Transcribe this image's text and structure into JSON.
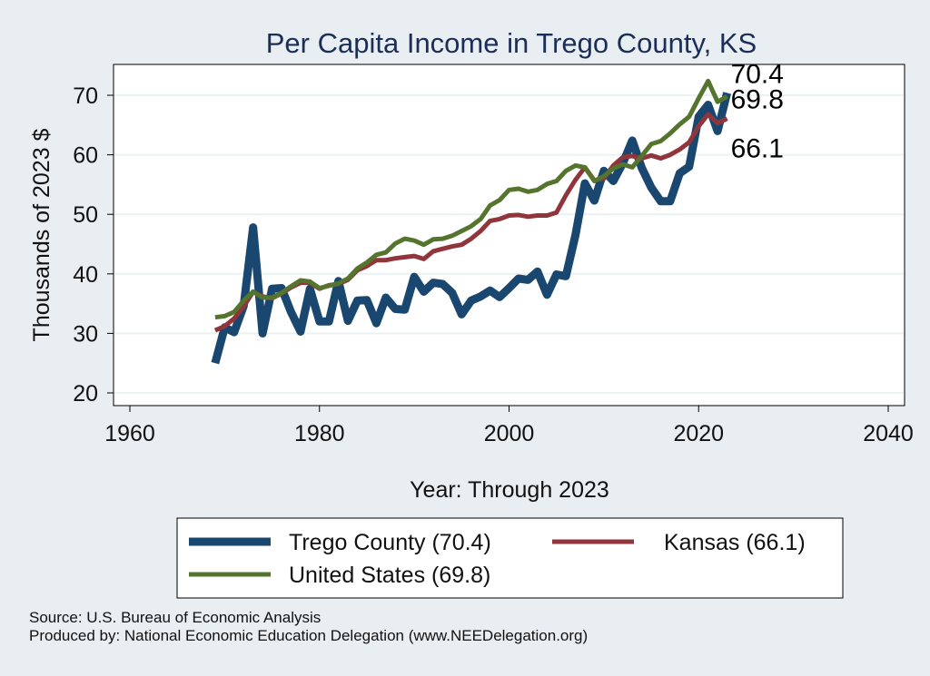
{
  "chart_data": {
    "type": "line",
    "title": "Per Capita Income in Trego County, KS",
    "xlabel": "Year: Through 2023",
    "ylabel": "Thousands of 2023 $",
    "xlim": [
      1960,
      2040
    ],
    "ylim": [
      18,
      75
    ],
    "x_ticks": [
      1960,
      1980,
      2000,
      2020,
      2040
    ],
    "y_ticks": [
      20,
      30,
      40,
      50,
      60,
      70
    ],
    "grid": true,
    "legend_position": "bottom",
    "x": [
      1969,
      1970,
      1971,
      1972,
      1973,
      1974,
      1975,
      1976,
      1977,
      1978,
      1979,
      1980,
      1981,
      1982,
      1983,
      1984,
      1985,
      1986,
      1987,
      1988,
      1989,
      1990,
      1991,
      1992,
      1993,
      1994,
      1995,
      1996,
      1997,
      1998,
      1999,
      2000,
      2001,
      2002,
      2003,
      2004,
      2005,
      2006,
      2007,
      2008,
      2009,
      2010,
      2011,
      2012,
      2013,
      2014,
      2015,
      2016,
      2017,
      2018,
      2019,
      2020,
      2021,
      2022,
      2023
    ],
    "series": [
      {
        "name": "Trego County (70.4)",
        "color": "#1a476f",
        "values": [
          25.0,
          31.0,
          30.2,
          34.6,
          47.8,
          30.0,
          37.5,
          37.6,
          33.6,
          30.3,
          37.5,
          32.0,
          32.0,
          38.8,
          32.1,
          35.5,
          35.6,
          31.7,
          36.0,
          34.1,
          34.0,
          39.5,
          37.0,
          38.5,
          38.3,
          36.8,
          33.2,
          35.5,
          36.2,
          37.2,
          36.1,
          37.6,
          39.2,
          39.0,
          40.4,
          36.5,
          39.9,
          39.6,
          46.5,
          55.2,
          52.3,
          57.3,
          55.6,
          58.6,
          62.4,
          57.8,
          54.5,
          52.2,
          52.2,
          56.9,
          58.0,
          66.4,
          68.4,
          64.0,
          70.4
        ]
      },
      {
        "name": "Kansas (66.1)",
        "color": "#90353b",
        "values": [
          30.5,
          31.2,
          32.5,
          34.5,
          37.0,
          36.2,
          35.9,
          36.7,
          37.7,
          38.5,
          38.5,
          37.5,
          38.1,
          38.3,
          39.0,
          40.6,
          41.3,
          42.3,
          42.3,
          42.6,
          42.8,
          43.0,
          42.5,
          43.8,
          44.2,
          44.6,
          44.9,
          45.9,
          47.2,
          48.9,
          49.2,
          49.8,
          49.9,
          49.6,
          49.8,
          49.8,
          50.3,
          53.2,
          55.8,
          57.9,
          55.7,
          56.0,
          58.2,
          59.6,
          59.8,
          59.4,
          59.9,
          59.4,
          60.0,
          60.9,
          62.1,
          64.8,
          66.8,
          65.3,
          66.1
        ]
      },
      {
        "name": "United States (69.8)",
        "color": "#55752f",
        "values": [
          32.7,
          32.9,
          33.6,
          35.5,
          37.0,
          36.0,
          36.0,
          36.8,
          37.9,
          38.9,
          38.7,
          37.6,
          38.0,
          38.4,
          39.2,
          40.9,
          41.9,
          43.2,
          43.6,
          45.1,
          45.9,
          45.6,
          44.9,
          45.8,
          45.9,
          46.4,
          47.2,
          48.0,
          49.2,
          51.5,
          52.4,
          54.1,
          54.3,
          53.8,
          54.1,
          55.1,
          55.6,
          57.3,
          58.2,
          57.9,
          55.6,
          56.4,
          57.7,
          58.4,
          57.9,
          59.8,
          61.8,
          62.3,
          63.6,
          65.1,
          66.4,
          69.5,
          72.4,
          68.9,
          69.8
        ]
      }
    ],
    "end_labels": [
      "70.4",
      "69.8",
      "66.1"
    ]
  },
  "footer": {
    "source": "Source: U.S. Bureau of Economic Analysis",
    "produced_by": "Produced by: National Economic Education Delegation (www.NEEDelegation.org)"
  }
}
